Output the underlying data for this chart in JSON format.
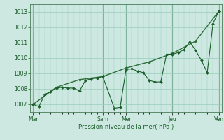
{
  "title": "",
  "xlabel": "Pression niveau de la mer( hPa )",
  "bg_color": "#cce8e0",
  "grid_color": "#99ccbb",
  "line_color": "#1a5c2a",
  "line_color2": "#2d6e3a",
  "vline_color": "#4a7a5a",
  "ylim": [
    1006.5,
    1013.5
  ],
  "yticks": [
    1007,
    1008,
    1009,
    1010,
    1011,
    1012,
    1013
  ],
  "xtick_labels": [
    "Mar",
    "Sam",
    "Mer",
    "Jeu",
    "Ven"
  ],
  "xtick_positions": [
    0,
    12,
    16,
    24,
    32
  ],
  "vlines": [
    0,
    12,
    16,
    24,
    32
  ],
  "xlim": [
    -0.5,
    32.5
  ],
  "series1_x": [
    0,
    1,
    2,
    3,
    4,
    5,
    6,
    7,
    8,
    9,
    10,
    11,
    12,
    14,
    15,
    16,
    17,
    18,
    19,
    20,
    21,
    22,
    23,
    24,
    25,
    26,
    27,
    28,
    29,
    30,
    31,
    32
  ],
  "series1_y": [
    1007.0,
    1006.85,
    1007.65,
    1007.8,
    1008.05,
    1008.1,
    1008.05,
    1008.05,
    1007.85,
    1008.55,
    1008.65,
    1008.7,
    1008.8,
    1006.75,
    1006.8,
    1009.25,
    1009.3,
    1009.15,
    1009.05,
    1008.55,
    1008.45,
    1008.45,
    1010.25,
    1010.25,
    1010.35,
    1010.55,
    1011.05,
    1010.5,
    1009.85,
    1009.05,
    1012.25,
    1013.05
  ],
  "series2_x": [
    0,
    4,
    8,
    12,
    16,
    20,
    24,
    28,
    32
  ],
  "series2_y": [
    1007.0,
    1008.1,
    1008.6,
    1008.8,
    1009.35,
    1009.75,
    1010.3,
    1011.1,
    1013.05
  ],
  "marker_size": 2.0,
  "linewidth1": 0.8,
  "linewidth2": 1.0,
  "xlabel_fontsize": 6.0,
  "ytick_fontsize": 5.5,
  "xtick_fontsize": 5.5
}
